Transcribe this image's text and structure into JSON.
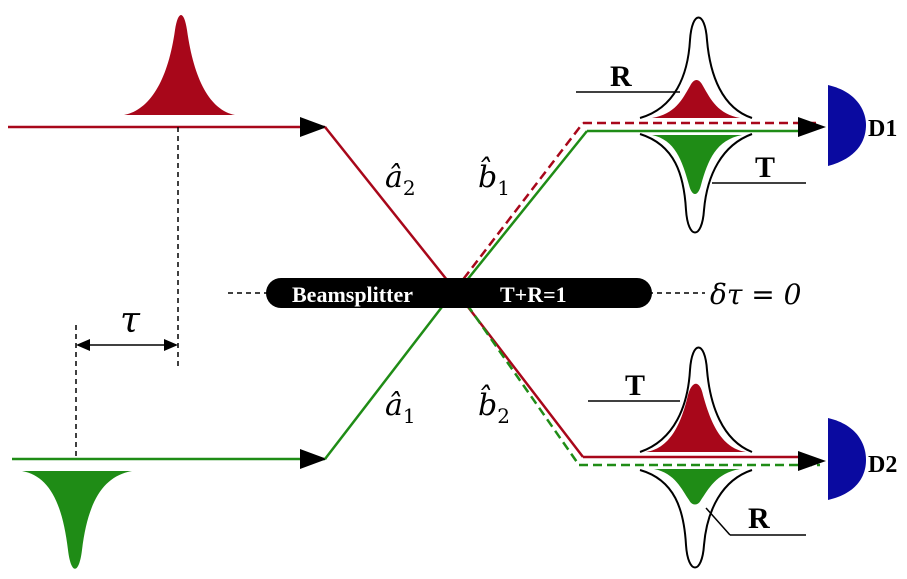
{
  "labels": {
    "tau": "τ",
    "a2": "â",
    "a2_sub": "2",
    "a1": "â",
    "a1_sub": "1",
    "b1": "b̂",
    "b1_sub": "1",
    "b2": "b̂",
    "b2_sub": "2",
    "beamsplitter": "Beamsplitter",
    "tr_sum": "T+R=1",
    "delta_tau": "δτ = 0",
    "d1_R": "R",
    "d1_T": "T",
    "d2_T": "T",
    "d2_R": "R",
    "detector1": "D1",
    "detector2": "D2"
  },
  "colors": {
    "red_beam": "#a8071a",
    "green_beam": "#1f8c16",
    "detector": "#0a0aa0",
    "beamsplitter": "#000000"
  }
}
